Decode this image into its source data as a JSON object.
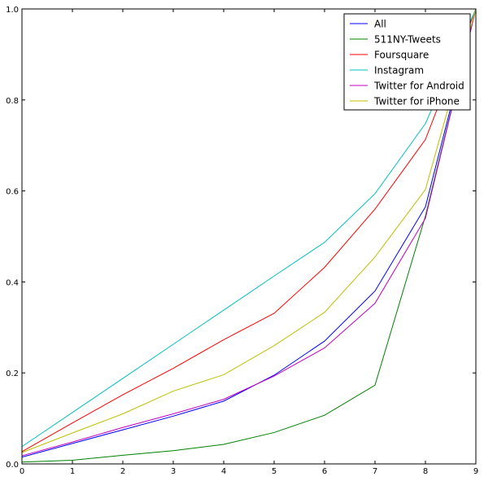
{
  "chart_data": {
    "type": "line",
    "title": "",
    "xlabel": "",
    "ylabel": "",
    "xlim": [
      0,
      9
    ],
    "ylim": [
      0,
      1.0
    ],
    "x": [
      0,
      1,
      2,
      3,
      4,
      5,
      6,
      7,
      8,
      9
    ],
    "x_ticks": [
      "0",
      "1",
      "2",
      "3",
      "4",
      "5",
      "6",
      "7",
      "8",
      "9"
    ],
    "y_ticks": [
      "0.0",
      "0.2",
      "0.4",
      "0.6",
      "0.8",
      "1.0"
    ],
    "grid": false,
    "legend_position": "top-right",
    "series": [
      {
        "name": "All",
        "color": "#0000ff",
        "values": [
          0.015,
          0.045,
          0.075,
          0.105,
          0.138,
          0.195,
          0.27,
          0.38,
          0.565,
          1.0
        ]
      },
      {
        "name": "511NY-Tweets",
        "color": "#008000",
        "values": [
          0.004,
          0.008,
          0.019,
          0.029,
          0.043,
          0.069,
          0.107,
          0.173,
          0.545,
          1.0
        ]
      },
      {
        "name": "Foursquare",
        "color": "#ff0000",
        "values": [
          0.027,
          0.09,
          0.152,
          0.21,
          0.273,
          0.331,
          0.432,
          0.56,
          0.713,
          1.0
        ]
      },
      {
        "name": "Instagram",
        "color": "#00bfbf",
        "values": [
          0.038,
          0.113,
          0.188,
          0.263,
          0.338,
          0.413,
          0.487,
          0.594,
          0.748,
          1.0
        ]
      },
      {
        "name": "Twitter for Android",
        "color": "#bf00bf",
        "values": [
          0.018,
          0.048,
          0.08,
          0.11,
          0.142,
          0.193,
          0.255,
          0.353,
          0.54,
          1.0
        ]
      },
      {
        "name": "Twitter for iPhone",
        "color": "#bfbf00",
        "values": [
          0.025,
          0.068,
          0.11,
          0.16,
          0.196,
          0.26,
          0.333,
          0.455,
          0.603,
          1.0
        ]
      }
    ]
  }
}
